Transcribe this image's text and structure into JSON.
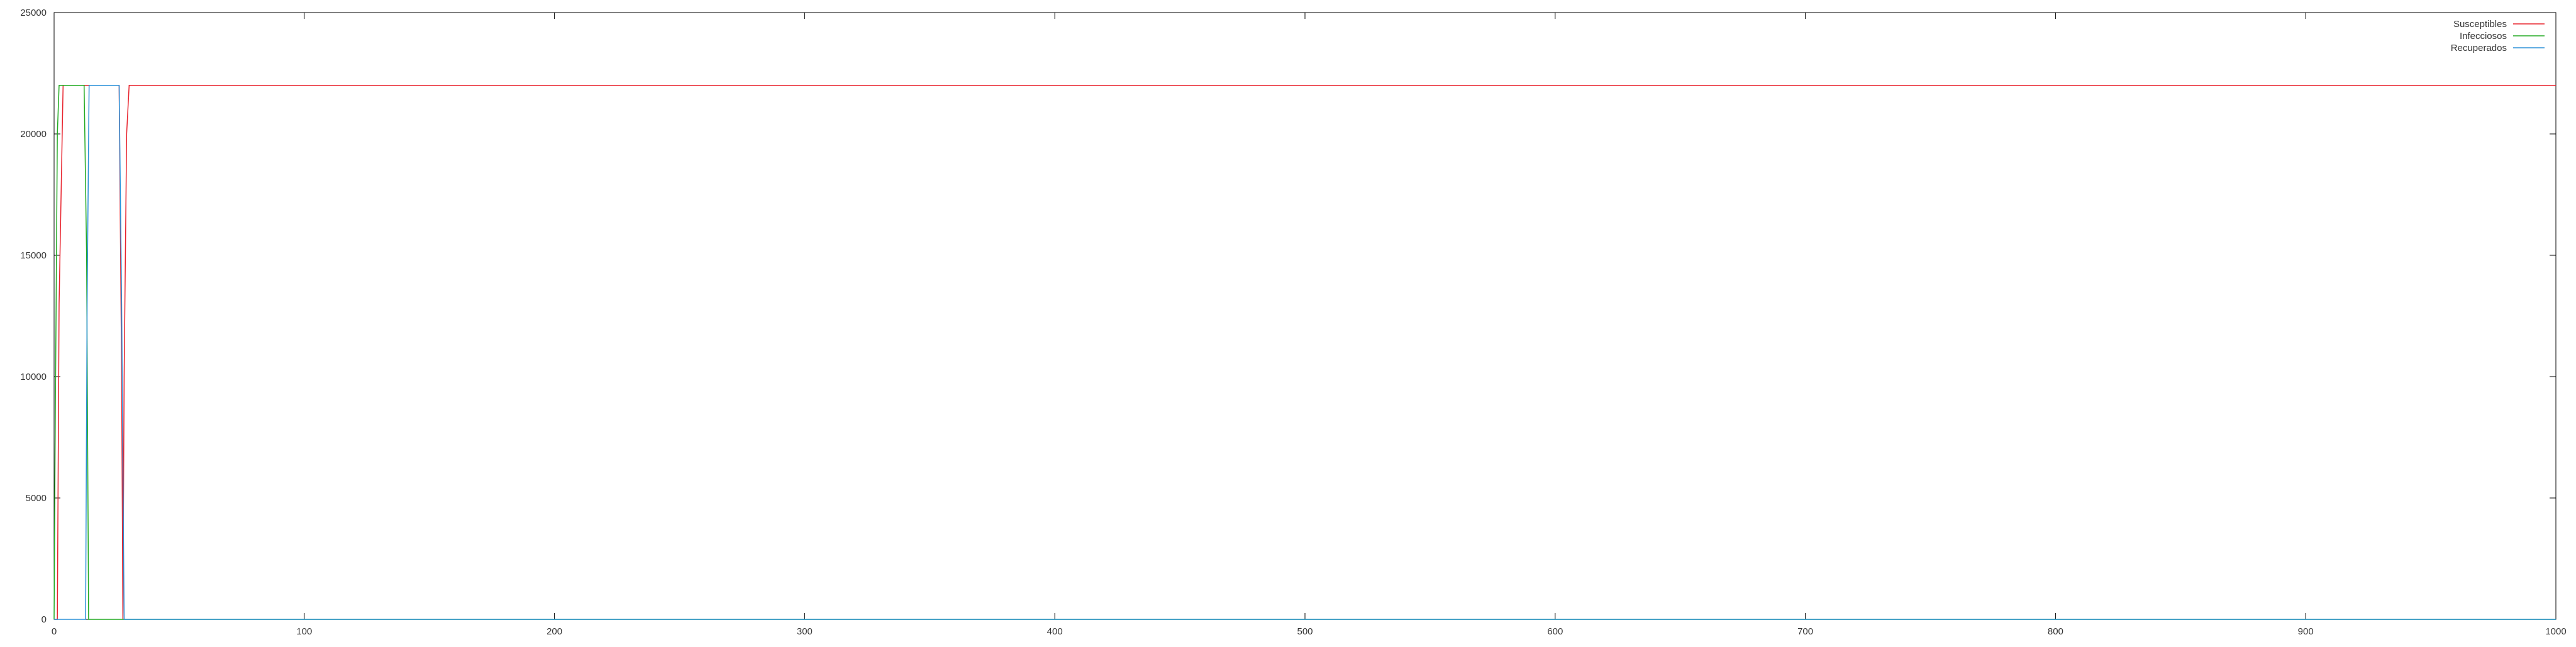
{
  "chart_data": {
    "type": "line",
    "title": "",
    "xlabel": "",
    "ylabel": "",
    "xlim": [
      0,
      1000
    ],
    "ylim": [
      0,
      25000
    ],
    "x_ticks": [
      0,
      100,
      200,
      300,
      400,
      500,
      600,
      700,
      800,
      900,
      1000
    ],
    "y_ticks": [
      0,
      5000,
      10000,
      15000,
      20000,
      25000
    ],
    "grid": false,
    "legend_position": "top-right",
    "series": [
      {
        "name": "Susceptibles",
        "color": "#e8232d",
        "points": [
          [
            0,
            0
          ],
          [
            1.3,
            0
          ],
          [
            2,
            13000
          ],
          [
            3.6,
            22000
          ],
          [
            26,
            22000
          ],
          [
            27,
            10000
          ],
          [
            27.5,
            0
          ],
          [
            28,
            10000
          ],
          [
            29,
            20000
          ],
          [
            30,
            22000
          ],
          [
            1000,
            22000
          ]
        ]
      },
      {
        "name": "Infecciosos",
        "color": "#22aa22",
        "points": [
          [
            0,
            0
          ],
          [
            0.4,
            7000
          ],
          [
            1.3,
            20000
          ],
          [
            2,
            22000
          ],
          [
            12,
            22000
          ],
          [
            13,
            15000
          ],
          [
            13.8,
            0
          ],
          [
            1000,
            0
          ]
        ]
      },
      {
        "name": "Recuperados",
        "color": "#2a90d8",
        "points": [
          [
            0,
            0
          ],
          [
            12.6,
            0
          ],
          [
            13.2,
            13000
          ],
          [
            14,
            22000
          ],
          [
            26,
            22000
          ],
          [
            27,
            13000
          ],
          [
            28,
            0
          ],
          [
            1000,
            0
          ]
        ]
      }
    ]
  }
}
